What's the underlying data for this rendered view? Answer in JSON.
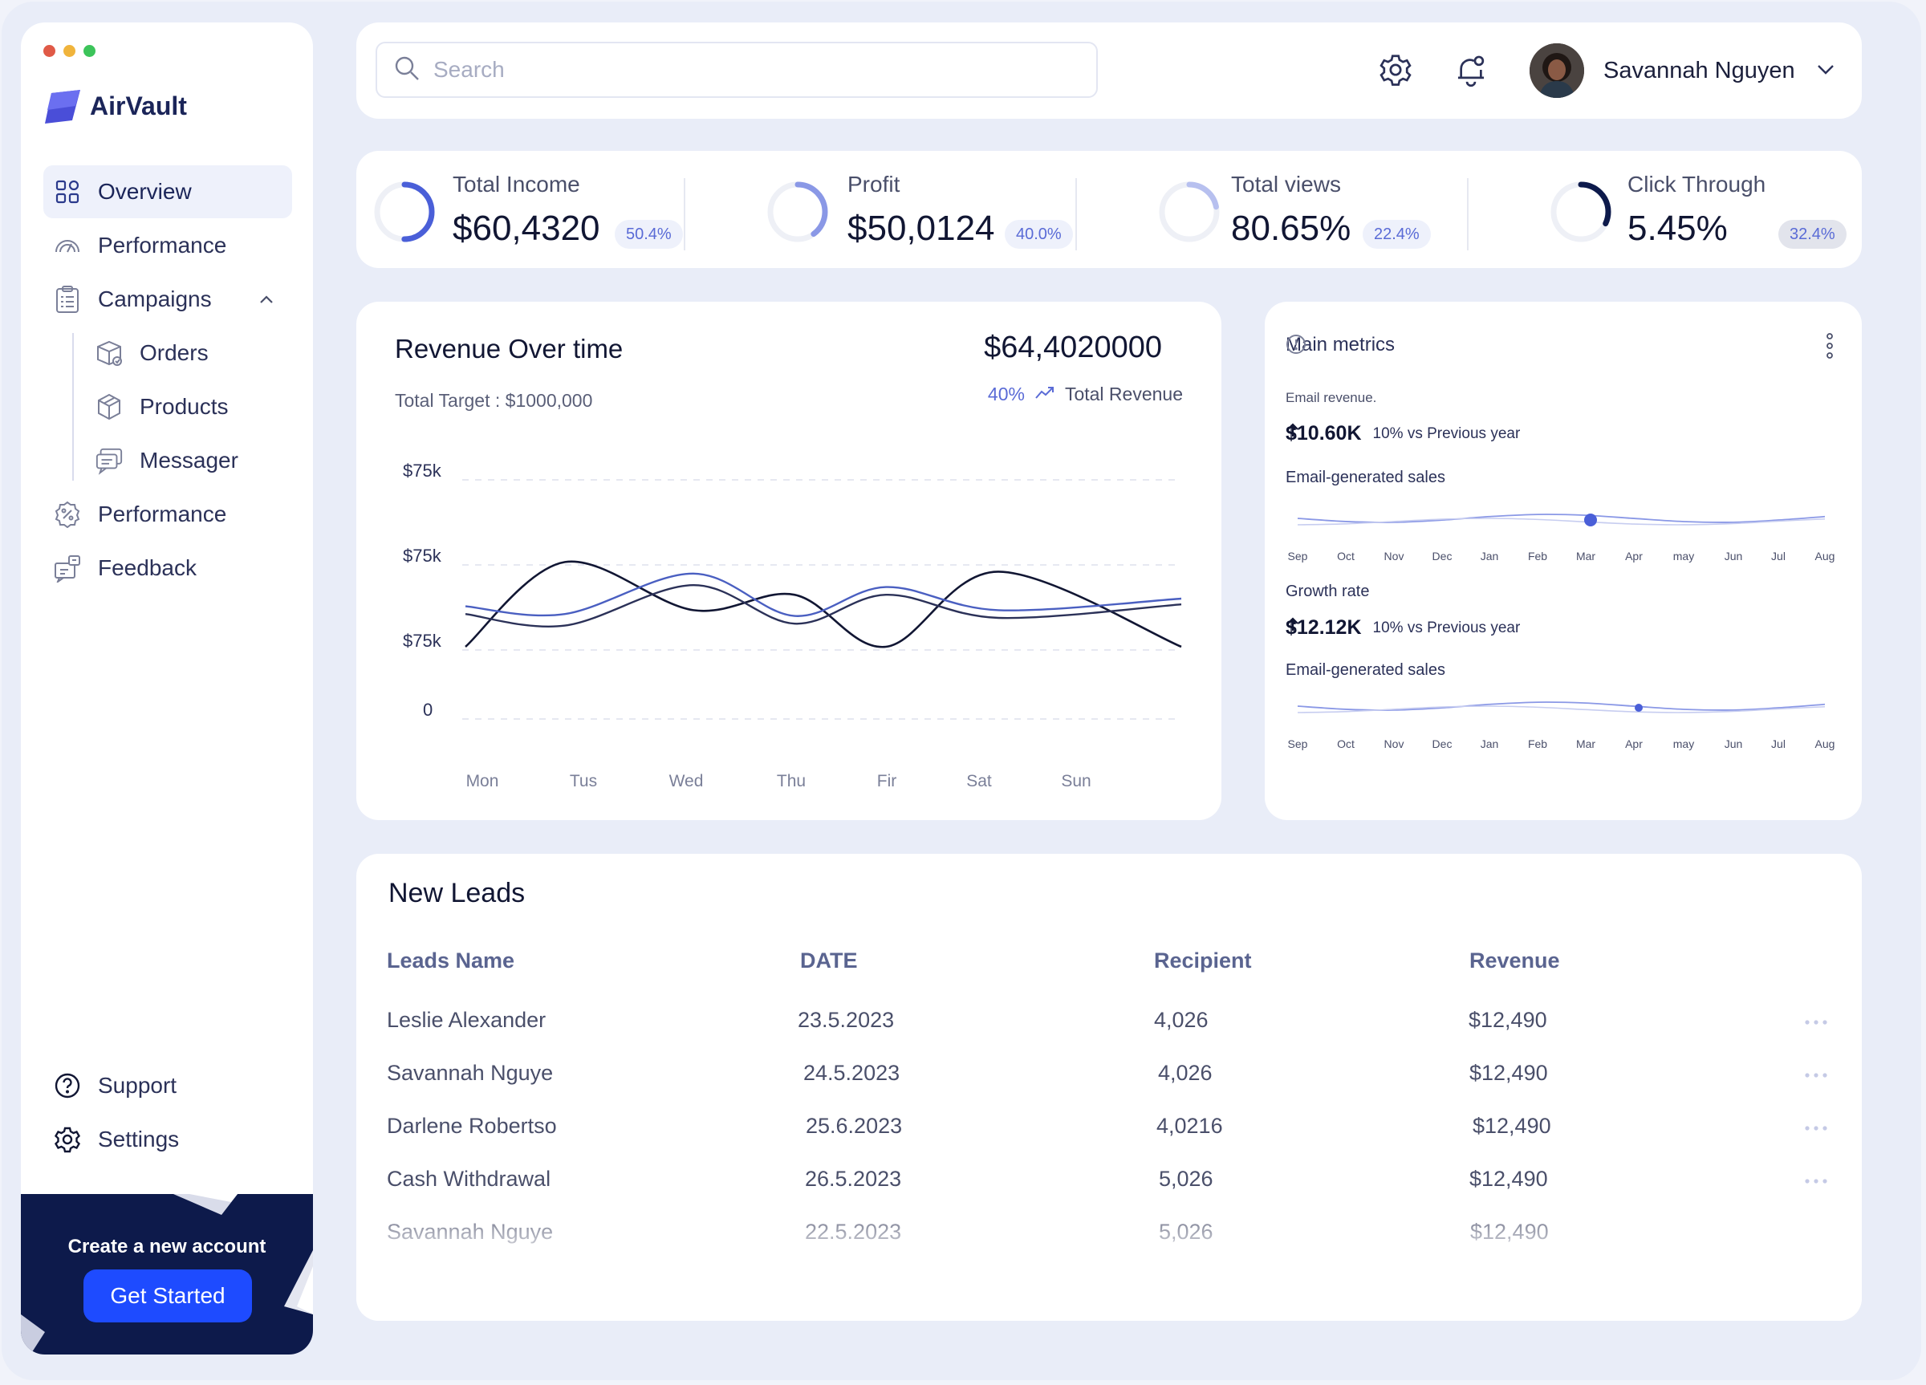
{
  "app": {
    "brand": "AirVault",
    "window_dots": [
      "#e05a47",
      "#f0b43c",
      "#3cc45a"
    ]
  },
  "sidebar": {
    "items": [
      {
        "label": "Overview",
        "icon": "grid-icon",
        "active": true
      },
      {
        "label": "Performance",
        "icon": "gauge-icon"
      },
      {
        "label": "Campaigns",
        "icon": "clipboard-icon",
        "expanded": true
      },
      {
        "label": "Orders",
        "icon": "box-icon",
        "sub": true
      },
      {
        "label": "Products",
        "icon": "cube-icon",
        "sub": true
      },
      {
        "label": "Messager",
        "icon": "chat-icon",
        "sub": true
      },
      {
        "label": "Performance",
        "icon": "percent-badge-icon"
      },
      {
        "label": "Feedback",
        "icon": "feedback-icon"
      }
    ],
    "bottom": [
      {
        "label": "Support",
        "icon": "help-icon"
      },
      {
        "label": "Settings",
        "icon": "gear-icon"
      }
    ],
    "cta": {
      "title": "Create a new account",
      "button": "Get Started"
    }
  },
  "header": {
    "search_placeholder": "Search",
    "user_name": "Savannah Nguyen"
  },
  "kpis": [
    {
      "label": "Total Income",
      "value": "$60,4320",
      "badge": "50.4%",
      "progress": 0.5
    },
    {
      "label": "Profit",
      "value": "$50,0124",
      "badge": "40.0%",
      "progress": 0.4
    },
    {
      "label": "Total views",
      "value": "80.65%",
      "badge": "22.4%",
      "progress": 0.22
    },
    {
      "label": "Click Through",
      "value": "5.45%",
      "badge": "32.4%",
      "progress": 0.32
    }
  ],
  "revenue": {
    "title": "Revenue Over time",
    "subtitle": "Total Target : $1000,000",
    "amount": "$64,4020000",
    "change": "40%",
    "change_label": "Total Revenue"
  },
  "chart_data": [
    {
      "type": "line",
      "title": "Revenue Over time",
      "categories": [
        "Mon",
        "Tus",
        "Wed",
        "Thu",
        "Fir",
        "Sat",
        "Sun"
      ],
      "y_tick_labels": [
        "$75k",
        "$75k",
        "$75k",
        "0"
      ],
      "grid": "horizontal dashed",
      "series": [
        {
          "color": "#111633",
          "values": [
            0.0,
            2.2,
            0.95,
            1.35,
            0.0,
            1.95,
            0.0
          ]
        },
        {
          "color": "#4a5fc1",
          "values": [
            1.05,
            0.85,
            1.9,
            0.8,
            1.55,
            0.95,
            1.25
          ]
        },
        {
          "color": "#2b3158",
          "values": [
            0.85,
            0.55,
            1.6,
            0.6,
            1.35,
            0.75,
            1.1
          ]
        }
      ]
    },
    {
      "type": "line",
      "title": "Email-generated sales",
      "categories": [
        "Sep",
        "Oct",
        "Nov",
        "Dec",
        "Jan",
        "Feb",
        "Mar",
        "Apr",
        "may",
        "Jun",
        "Jul",
        "Aug"
      ],
      "highlight": "Mar"
    },
    {
      "type": "line",
      "title": "Email-generated sales",
      "categories": [
        "Sep",
        "Oct",
        "Nov",
        "Dec",
        "Jan",
        "Feb",
        "Mar",
        "Apr",
        "may",
        "Jun",
        "Jul",
        "Aug"
      ],
      "highlight": "Apr"
    }
  ],
  "metrics": {
    "title": "Main metrics",
    "email_label": "Email revenue.",
    "email_value": "$10.60K",
    "email_delta": "10% vs Previous year",
    "sales_label_1": "Email-generated sales",
    "growth_label": "Growth rate",
    "growth_value": "$12.12K",
    "growth_delta": "10% vs Previous year",
    "sales_label_2": "Email-generated sales"
  },
  "leads": {
    "title": "New Leads",
    "columns": [
      "Leads Name",
      "DATE",
      "Recipient",
      "Revenue"
    ],
    "rows": [
      [
        "Leslie Alexander",
        "23.5.2023",
        "4,026",
        "$12,490"
      ],
      [
        "Savannah Nguye",
        "24.5.2023",
        "4,026",
        "$12,490"
      ],
      [
        "Darlene Robertso",
        "25.6.2023",
        "4,0216",
        "$12,490"
      ],
      [
        "Cash Withdrawal",
        "26.5.2023",
        "5,026",
        "$12,490"
      ],
      [
        "Savannah Nguye",
        "22.5.2023",
        "5,026",
        "$12,490"
      ]
    ]
  }
}
